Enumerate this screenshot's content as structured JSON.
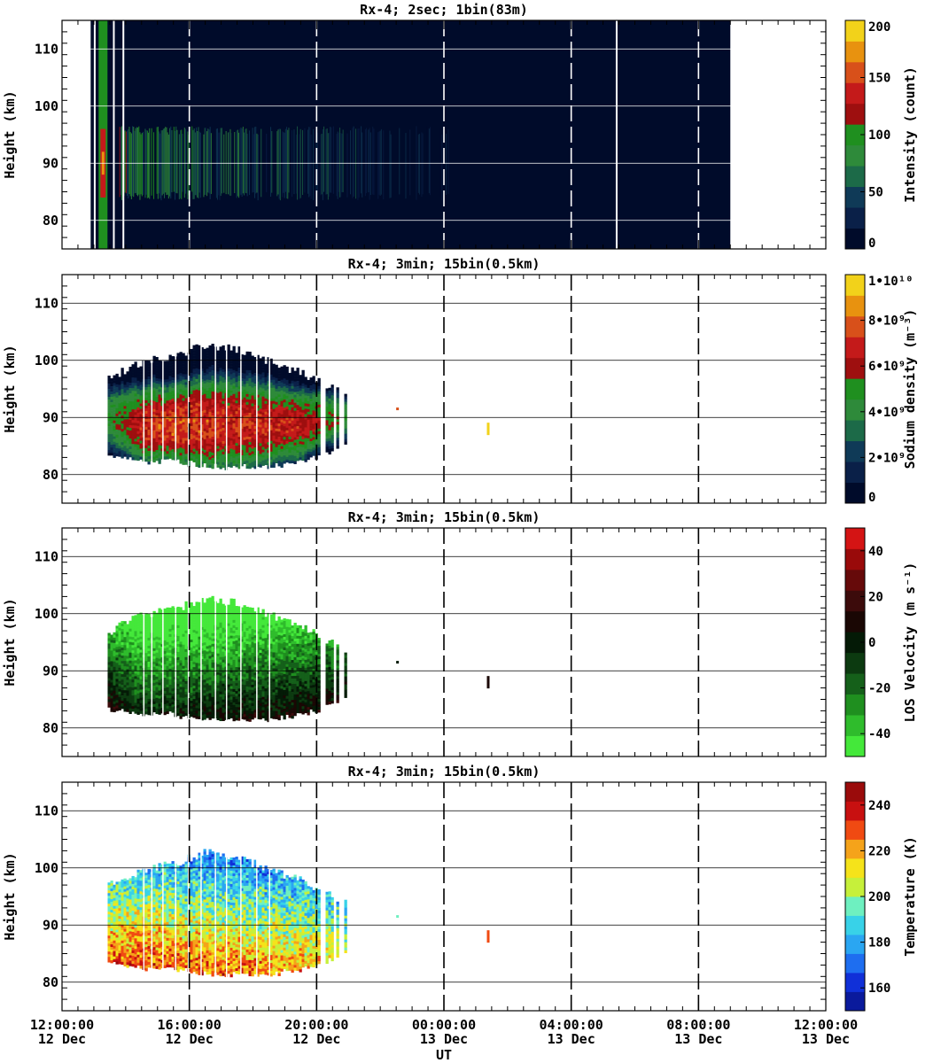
{
  "figure": {
    "xlabel": "UT",
    "x_ticks": [
      {
        "time": "12:00:00",
        "date": "12 Dec",
        "hour": 12
      },
      {
        "time": "16:00:00",
        "date": "12 Dec",
        "hour": 16
      },
      {
        "time": "20:00:00",
        "date": "12 Dec",
        "hour": 20
      },
      {
        "time": "00:00:00",
        "date": "13 Dec",
        "hour": 24
      },
      {
        "time": "04:00:00",
        "date": "13 Dec",
        "hour": 28
      },
      {
        "time": "08:00:00",
        "date": "13 Dec",
        "hour": 32
      },
      {
        "time": "12:00:00",
        "date": "13 Dec",
        "hour": 36
      }
    ]
  },
  "chart_data": [
    {
      "type": "heatmap",
      "title": "Rx-4;  2sec; 1bin(83m)",
      "ylabel": "Height (km)",
      "colorbar_label": "Intensity (count)",
      "xlim": [
        12,
        36
      ],
      "ylim": [
        75,
        115
      ],
      "y_ticks": [
        80,
        90,
        100,
        110
      ],
      "colorbar_ticks": [
        "0",
        "50",
        "100",
        "150",
        "200"
      ],
      "colorbar_range": [
        0,
        200
      ],
      "colors": [
        "#000b2a",
        "#0a2048",
        "#0f3a57",
        "#1c6a48",
        "#2e8a3a",
        "#1f8f1f",
        "#9e0f0f",
        "#c41a1a",
        "#d8501a",
        "#e8920f",
        "#f2d21a"
      ],
      "data_xlim": [
        12.9,
        33.0
      ],
      "layer": {
        "start": 13.8,
        "end": 24.2,
        "low_km": 85,
        "high_km": 95,
        "peak_km": 90,
        "peak_value": 110
      }
    },
    {
      "type": "heatmap",
      "title": "Rx-4; 3min; 15bin(0.5km)",
      "ylabel": "Height (km)",
      "colorbar_label": "Sodium density (m⁻³)",
      "xlim": [
        12,
        36
      ],
      "ylim": [
        75,
        115
      ],
      "y_ticks": [
        80,
        90,
        100,
        110
      ],
      "colorbar_ticks": [
        "0",
        "2•10⁹",
        "4•10⁹",
        "6•10⁹",
        "8•10⁹",
        "1•10¹⁰"
      ],
      "colorbar_range": [
        0,
        10000000000
      ],
      "colors": [
        "#000b2a",
        "#0a2048",
        "#0f3a57",
        "#1c6a48",
        "#2e8a3a",
        "#1f8f1f",
        "#9e0f0f",
        "#c41a1a",
        "#d8501a",
        "#e8920f",
        "#f2d21a"
      ],
      "profile": [
        [
          13.4,
          84,
          96,
          90,
          4500000000.0
        ],
        [
          14.5,
          83,
          99,
          89,
          7000000000.0
        ],
        [
          15.5,
          83,
          100,
          89,
          7500000000.0
        ],
        [
          16.5,
          82,
          102,
          89,
          7200000000.0
        ],
        [
          17.5,
          82,
          101,
          89,
          7000000000.0
        ],
        [
          18.5,
          82,
          99,
          89,
          6800000000.0
        ],
        [
          19.5,
          83,
          97,
          89,
          6500000000.0
        ],
        [
          20.2,
          84,
          95,
          90,
          6000000000.0
        ],
        [
          20.9,
          86,
          93,
          90,
          4500000000.0
        ]
      ],
      "points": [
        [
          22.5,
          91.5,
          8000000000.0
        ],
        [
          25.35,
          88,
          9500000000.0
        ]
      ]
    },
    {
      "type": "heatmap",
      "title": "Rx-4; 3min; 15bin(0.5km)",
      "ylabel": "Height (km)",
      "colorbar_label": "LOS Velocity (m s⁻¹)",
      "xlim": [
        12,
        36
      ],
      "ylim": [
        75,
        115
      ],
      "y_ticks": [
        80,
        90,
        100,
        110
      ],
      "colorbar_ticks": [
        "-40",
        "-20",
        "0",
        "20",
        "40"
      ],
      "colorbar_range": [
        -50,
        50
      ],
      "colors": [
        "#44e83a",
        "#2fbc2c",
        "#1f8f1f",
        "#15601a",
        "#0c3a10",
        "#041a06",
        "#1a0704",
        "#3c0b0b",
        "#660a0a",
        "#990a0a",
        "#d41414"
      ],
      "profile": [
        [
          13.4,
          84,
          96,
          90,
          -10
        ],
        [
          14.5,
          83,
          99,
          89,
          -25
        ],
        [
          15.5,
          83,
          100,
          89,
          -22
        ],
        [
          16.5,
          82,
          102,
          89,
          -20
        ],
        [
          17.5,
          82,
          101,
          89,
          -18
        ],
        [
          18.5,
          82,
          99,
          89,
          -16
        ],
        [
          19.5,
          83,
          97,
          89,
          -14
        ],
        [
          20.2,
          84,
          95,
          90,
          -12
        ],
        [
          20.9,
          86,
          93,
          90,
          -10
        ]
      ],
      "points": [
        [
          22.5,
          91.5,
          0
        ],
        [
          25.35,
          88,
          10
        ]
      ]
    },
    {
      "type": "heatmap",
      "title": "Rx-4; 3min; 15bin(0.5km)",
      "ylabel": "Height (km)",
      "colorbar_label": "Temperature (K)",
      "xlim": [
        12,
        36
      ],
      "ylim": [
        75,
        115
      ],
      "y_ticks": [
        80,
        90,
        100,
        110
      ],
      "colorbar_ticks": [
        "160",
        "180",
        "200",
        "220",
        "240"
      ],
      "colorbar_range": [
        150,
        250
      ],
      "colors": [
        "#0a1a9c",
        "#1030d8",
        "#1e6ef0",
        "#2aa6f2",
        "#38d2e8",
        "#6ef0c0",
        "#c6f03a",
        "#f5e31a",
        "#f5a31a",
        "#f04a12",
        "#c81010",
        "#9a0b0b"
      ],
      "profile": [
        [
          13.4,
          84,
          96,
          90,
          210
        ],
        [
          14.5,
          83,
          99,
          89,
          215
        ],
        [
          15.5,
          83,
          100,
          89,
          212
        ],
        [
          16.5,
          82,
          102,
          89,
          210
        ],
        [
          17.5,
          82,
          101,
          89,
          208
        ],
        [
          18.5,
          82,
          99,
          89,
          206
        ],
        [
          19.5,
          83,
          97,
          89,
          204
        ],
        [
          20.2,
          84,
          95,
          90,
          200
        ],
        [
          20.9,
          86,
          93,
          90,
          195
        ]
      ],
      "points": [
        [
          22.5,
          91.5,
          195
        ],
        [
          25.35,
          88,
          225
        ]
      ]
    }
  ]
}
